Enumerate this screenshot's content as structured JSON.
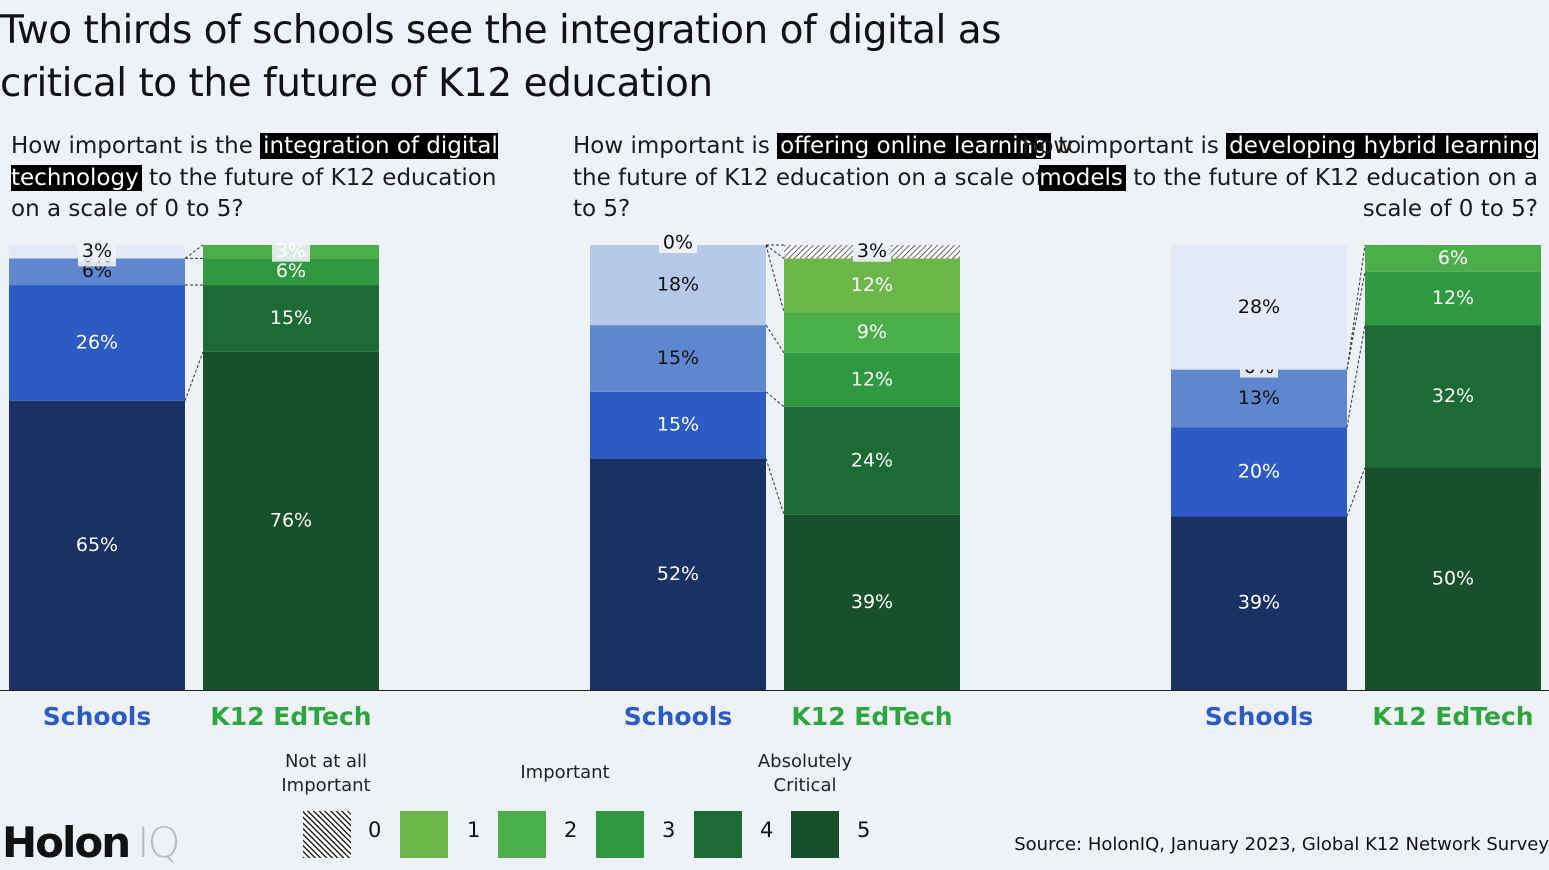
{
  "title": "Two thirds of schools see the integration of digital as critical to the future of K12 education",
  "questions": [
    {
      "pre": "How important is the ",
      "highlight": "integration of digital technology",
      "post": " to the future of K12 education on a scale of 0 to 5?"
    },
    {
      "pre": "How important is ",
      "highlight": "offering online learning",
      "post": " to the future of K12 education on a scale of 0 to 5?"
    },
    {
      "pre": "How important is ",
      "highlight": "developing hybrid learning models",
      "post": " to the future of K12 education on a scale of 0 to 5?"
    }
  ],
  "colors": {
    "schools": [
      "#e3eaf5",
      "#b6c9e8",
      "#5e87d0",
      "#2d5bc4",
      "#1a3263"
    ],
    "edtech": [
      "#6db64c",
      "#4cae4a",
      "#2f9840",
      "#1c6b34",
      "#17502a"
    ],
    "schools_label": "#2d5bc4",
    "edtech_label": "#2fa540"
  },
  "chart_data": {
    "type": "bar",
    "stacked": true,
    "normalized_to_percent": true,
    "categories": [
      "Schools",
      "K12 EdTech"
    ],
    "panels": [
      {
        "question": "integration of digital technology",
        "schools": {
          "0": 3,
          "1": null,
          "2": 0,
          "3": 6,
          "4": 26,
          "5": 65
        },
        "k12_edtech": {
          "0": null,
          "1": 0,
          "2": 3,
          "3": 6,
          "4": 15,
          "5": 76
        }
      },
      {
        "question": "offering online learning",
        "schools": {
          "0": 0,
          "1": 0,
          "2": 18,
          "3": 15,
          "4": 15,
          "5": 52
        },
        "k12_edtech": {
          "0": 3,
          "1": 12,
          "2": 9,
          "3": 12,
          "4": 24,
          "5": 39
        }
      },
      {
        "question": "developing hybrid learning models",
        "schools": {
          "0": 0,
          "1": 28,
          "2": 0,
          "3": 13,
          "4": 20,
          "5": 39
        },
        "k12_edtech": {
          "0": 0,
          "1": 0,
          "2": 6,
          "3": 12,
          "4": 32,
          "5": 50
        }
      }
    ],
    "series_labels": [
      [
        {
          "bar": "schools",
          "segments": [
            {
              "level": 0,
              "value": 3,
              "label": "3%"
            },
            {
              "level": 2,
              "value": 0,
              "label": "0%"
            },
            {
              "level": 3,
              "value": 6,
              "label": "6%"
            },
            {
              "level": 4,
              "value": 26,
              "label": "26%"
            },
            {
              "level": 5,
              "value": 65,
              "label": "65%"
            }
          ]
        },
        {
          "bar": "k12_edtech",
          "segments": [
            {
              "level": 2,
              "value": 3,
              "label": "3%"
            },
            {
              "level": 3,
              "value": 6,
              "label": "6%"
            },
            {
              "level": 4,
              "value": 15,
              "label": "15%"
            },
            {
              "level": 5,
              "value": 76,
              "label": "76%"
            }
          ]
        }
      ],
      [
        {
          "bar": "schools",
          "segments": [
            {
              "level": 0,
              "value": 0,
              "label": "0%"
            },
            {
              "level": 1,
              "value": 0,
              "label": "0%"
            },
            {
              "level": 2,
              "value": 18,
              "label": "18%"
            },
            {
              "level": 3,
              "value": 15,
              "label": "15%"
            },
            {
              "level": 4,
              "value": 15,
              "label": "15%"
            },
            {
              "level": 5,
              "value": 52,
              "label": "52%"
            }
          ]
        },
        {
          "bar": "k12_edtech",
          "segments": [
            {
              "level": 0,
              "value": 3,
              "label": "3%"
            },
            {
              "level": 1,
              "value": 12,
              "label": "12%"
            },
            {
              "level": 2,
              "value": 9,
              "label": "9%"
            },
            {
              "level": 3,
              "value": 12,
              "label": "12%"
            },
            {
              "level": 4,
              "value": 24,
              "label": "24%"
            },
            {
              "level": 5,
              "value": 39,
              "label": "39%"
            }
          ]
        }
      ],
      [
        {
          "bar": "schools",
          "segments": [
            {
              "level": 1,
              "value": 28,
              "label": "28%"
            },
            {
              "level": 2,
              "value": 0,
              "label": "0%"
            },
            {
              "level": 3,
              "value": 13,
              "label": "13%"
            },
            {
              "level": 4,
              "value": 20,
              "label": "20%"
            },
            {
              "level": 5,
              "value": 39,
              "label": "39%"
            }
          ]
        },
        {
          "bar": "k12_edtech",
          "segments": [
            {
              "level": 2,
              "value": 6,
              "label": "6%"
            },
            {
              "level": 3,
              "value": 12,
              "label": "12%"
            },
            {
              "level": 4,
              "value": 32,
              "label": "32%"
            },
            {
              "level": 5,
              "value": 50,
              "label": "50%"
            }
          ]
        }
      ]
    ],
    "legend": {
      "levels": [
        "0",
        "1",
        "2",
        "3",
        "4",
        "5"
      ],
      "captions": {
        "0": "Not at all Important",
        "2": "Important",
        "5": "Absolutely Critical"
      }
    },
    "grid": false
  },
  "group_labels": {
    "schools": "Schools",
    "edtech": "K12 EdTech"
  },
  "legend_captions": {
    "not_important": "Not at all Important",
    "important": "Important",
    "critical": "Absolutely Critical"
  },
  "legend_numbers": [
    "0",
    "1",
    "2",
    "3",
    "4",
    "5"
  ],
  "logo": {
    "main": "Holon",
    "suffix": "IQ"
  },
  "source": "Source: HolonIQ, January 2023, Global K12 Network Survey"
}
